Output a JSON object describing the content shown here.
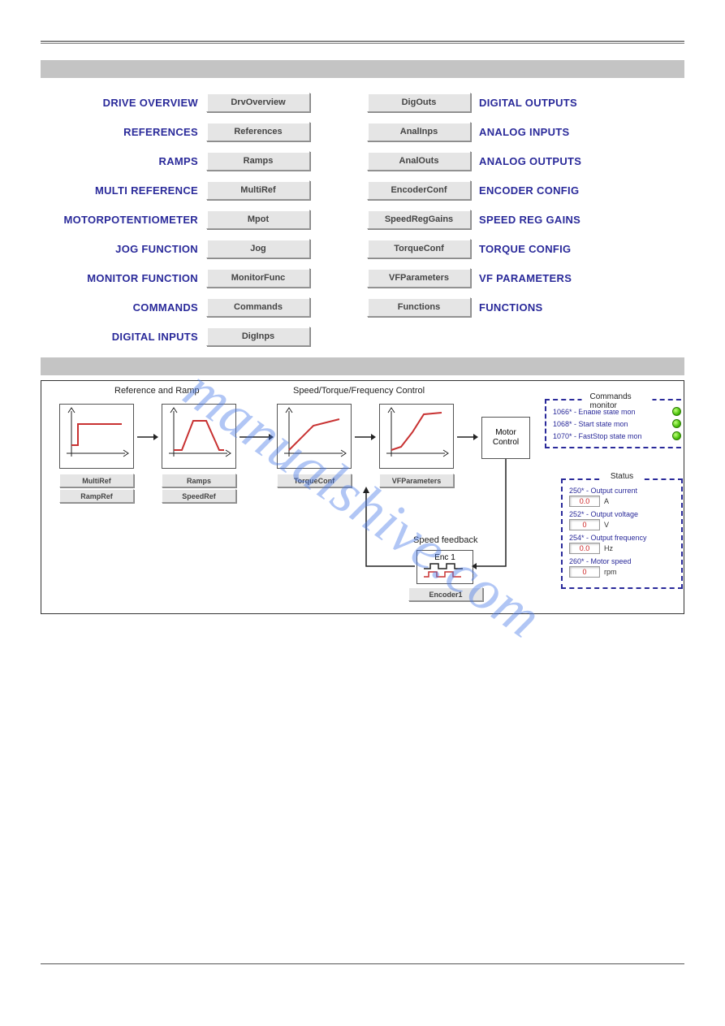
{
  "watermark": "manualshive.com",
  "left_buttons": [
    {
      "label": "DRIVE OVERVIEW",
      "btn": "DrvOverview"
    },
    {
      "label": "REFERENCES",
      "btn": "References"
    },
    {
      "label": "RAMPS",
      "btn": "Ramps"
    },
    {
      "label": "MULTI REFERENCE",
      "btn": "MultiRef"
    },
    {
      "label": "MOTORPOTENTIOMETER",
      "btn": "Mpot"
    },
    {
      "label": "JOG FUNCTION",
      "btn": "Jog"
    },
    {
      "label": "MONITOR FUNCTION",
      "btn": "MonitorFunc"
    },
    {
      "label": "COMMANDS",
      "btn": "Commands"
    },
    {
      "label": "DIGITAL INPUTS",
      "btn": "DigInps"
    }
  ],
  "right_buttons": [
    {
      "btn": "DigOuts",
      "label": "DIGITAL OUTPUTS"
    },
    {
      "btn": "AnalInps",
      "label": "ANALOG INPUTS"
    },
    {
      "btn": "AnalOuts",
      "label": "ANALOG OUTPUTS"
    },
    {
      "btn": "EncoderConf",
      "label": "ENCODER CONFIG"
    },
    {
      "btn": "SpeedRegGains",
      "label": "SPEED REG GAINS"
    },
    {
      "btn": "TorqueConf",
      "label": "TORQUE CONFIG"
    },
    {
      "btn": "VFParameters",
      "label": "VF PARAMETERS"
    },
    {
      "btn": "Functions",
      "label": "FUNCTIONS"
    }
  ],
  "diagram": {
    "sections": {
      "ref_ramp_title": "Reference and Ramp",
      "stf_title": "Speed/Torque/Frequency Control",
      "feedback_title": "Speed feedback",
      "cmds_title": "Commands monitor",
      "status_title": "Status",
      "motor": "Motor\nControl",
      "enc": "Enc 1"
    },
    "small_buttons": {
      "multiref": "MultiRef",
      "rampref": "RampRef",
      "ramps": "Ramps",
      "speedref": "SpeedRef",
      "torqueconf": "TorqueConf",
      "vfparams": "VFParameters",
      "encoder1": "Encoder1"
    },
    "commands": [
      "1066* - Enable state mon",
      "1068* - Start state mon",
      "1070* - FastStop state mon"
    ],
    "status": [
      {
        "label": "250* - Output current",
        "value": "0.0",
        "unit": "A"
      },
      {
        "label": "252* - Output voltage",
        "value": "0",
        "unit": "V"
      },
      {
        "label": "254* - Output frequency",
        "value": "0.0",
        "unit": "Hz"
      },
      {
        "label": "260* - Motor speed",
        "value": "0",
        "unit": "rpm"
      }
    ],
    "colors": {
      "line_red": "#c83232",
      "axis": "#222222",
      "panel_border": "#2a2a9a",
      "led_green": "#4ac20a"
    }
  }
}
